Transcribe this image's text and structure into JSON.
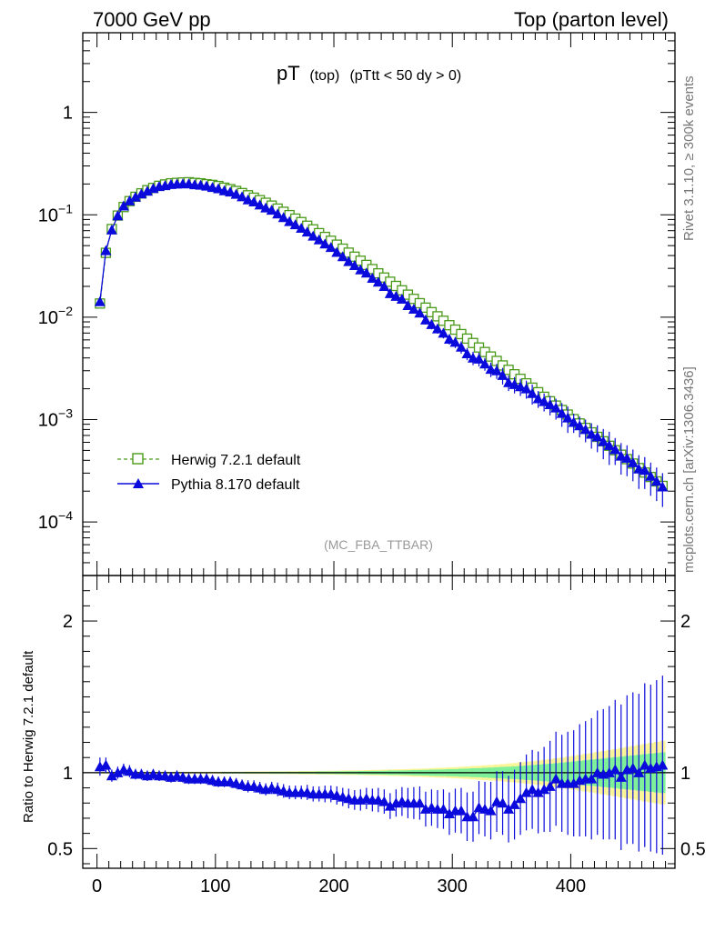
{
  "header": {
    "left": "7000 GeV pp",
    "right": "Top (parton level)"
  },
  "title": {
    "main": "pT",
    "sub": "(top)",
    "cut": "(pTtt < 50 dy > 0)"
  },
  "side_texts": {
    "rivet": "Rivet 3.1.10, ≥ 300k events",
    "mcplots": "mcplots.cern.ch [arXiv:1306.3436]"
  },
  "analysis_tag": "(MC_FBA_TTBAR)",
  "legend": [
    {
      "label": "Herwig 7.2.1 default",
      "color": "#4a9a1a",
      "marker": "open-square",
      "line": "dashed"
    },
    {
      "label": "Pythia 8.170 default",
      "color": "#0a0adc",
      "marker": "filled-triangle",
      "line": "solid"
    }
  ],
  "colors": {
    "herwig": "#4a9a1a",
    "pythia": "#0a0adc",
    "band_inner": "#7ff09a",
    "band_outer": "#fbf59a"
  },
  "chart_data": [
    {
      "type": "line",
      "panel": "main",
      "yscale": "log",
      "xlim": [
        -12,
        488
      ],
      "ylim": [
        3e-05,
        6
      ],
      "x_ticks": [
        0,
        100,
        200,
        300,
        400
      ],
      "y_ticks": [
        {
          "value": 0.0001,
          "base": "10",
          "exp": "−4"
        },
        {
          "value": 0.001,
          "base": "10",
          "exp": "−3"
        },
        {
          "value": 0.01,
          "base": "10",
          "exp": "−2"
        },
        {
          "value": 0.1,
          "base": "10",
          "exp": "−1"
        },
        {
          "value": 1,
          "base": "1",
          "exp": ""
        }
      ],
      "bin_width": 5,
      "x": [
        2.5,
        7.5,
        12.5,
        17.5,
        22.5,
        27.5,
        32.5,
        37.5,
        42.5,
        47.5,
        52.5,
        57.5,
        62.5,
        67.5,
        72.5,
        77.5,
        82.5,
        87.5,
        92.5,
        97.5,
        102.5,
        107.5,
        112.5,
        117.5,
        122.5,
        127.5,
        132.5,
        137.5,
        142.5,
        147.5,
        152.5,
        157.5,
        162.5,
        167.5,
        172.5,
        177.5,
        182.5,
        187.5,
        192.5,
        197.5,
        202.5,
        207.5,
        212.5,
        217.5,
        222.5,
        227.5,
        232.5,
        237.5,
        242.5,
        247.5,
        252.5,
        257.5,
        262.5,
        267.5,
        272.5,
        277.5,
        282.5,
        287.5,
        292.5,
        297.5,
        302.5,
        307.5,
        312.5,
        317.5,
        322.5,
        327.5,
        332.5,
        337.5,
        342.5,
        347.5,
        352.5,
        357.5,
        362.5,
        367.5,
        372.5,
        377.5,
        382.5,
        387.5,
        392.5,
        397.5,
        402.5,
        407.5,
        412.5,
        417.5,
        422.5,
        427.5,
        432.5,
        437.5,
        442.5,
        447.5,
        452.5,
        457.5,
        462.5,
        467.5,
        472.5,
        477.5
      ],
      "series": [
        {
          "name": "Herwig 7.2.1 default",
          "values": [
            0.0136,
            0.0425,
            0.0726,
            0.0983,
            0.119,
            0.136,
            0.15,
            0.162,
            0.174,
            0.183,
            0.192,
            0.198,
            0.203,
            0.205,
            0.207,
            0.208,
            0.205,
            0.203,
            0.199,
            0.196,
            0.191,
            0.184,
            0.178,
            0.171,
            0.163,
            0.155,
            0.147,
            0.139,
            0.131,
            0.123,
            0.115,
            0.107,
            0.0993,
            0.0918,
            0.0849,
            0.0782,
            0.0721,
            0.0662,
            0.0608,
            0.0558,
            0.0511,
            0.0467,
            0.0427,
            0.039,
            0.0356,
            0.0324,
            0.0295,
            0.0268,
            0.0244,
            0.0222,
            0.0202,
            0.0183,
            0.0166,
            0.0151,
            0.0137,
            0.0124,
            0.0112,
            0.0102,
            0.00923,
            0.00835,
            0.00756,
            0.00684,
            0.00618,
            0.0056,
            0.00506,
            0.00457,
            0.00413,
            0.00374,
            0.00338,
            0.00306,
            0.00277,
            0.0025,
            0.00226,
            0.00205,
            0.00185,
            0.00167,
            0.00151,
            0.00137,
            0.00124,
            0.00112,
            0.00101,
            0.000917,
            0.000829,
            0.00075,
            0.000678,
            0.000614,
            0.000555,
            0.000502,
            0.000454,
            0.000411,
            0.000372,
            0.000336,
            0.000304,
            0.000275,
            0.000249,
            0.000225
          ]
        },
        {
          "name": "Pythia 8.170 default",
          "values": [
            0.0142,
            0.0447,
            0.0711,
            0.098,
            0.122,
            0.137,
            0.149,
            0.16,
            0.17,
            0.181,
            0.189,
            0.193,
            0.198,
            0.2,
            0.201,
            0.201,
            0.197,
            0.195,
            0.191,
            0.185,
            0.18,
            0.172,
            0.167,
            0.159,
            0.15,
            0.14,
            0.134,
            0.125,
            0.117,
            0.111,
            0.102,
            0.094,
            0.086,
            0.08,
            0.074,
            0.068,
            0.062,
            0.057,
            0.052,
            0.048,
            0.043,
            0.039,
            0.035,
            0.032,
            0.029,
            0.027,
            0.024,
            0.022,
            0.02,
            0.017,
            0.016,
            0.015,
            0.013,
            0.012,
            0.011,
            0.0094,
            0.0085,
            0.0077,
            0.007,
            0.0061,
            0.0057,
            0.0051,
            0.0044,
            0.004,
            0.0039,
            0.0035,
            0.0031,
            0.003,
            0.0027,
            0.0023,
            0.0022,
            0.0021,
            0.002,
            0.0018,
            0.0016,
            0.0015,
            0.0014,
            0.0013,
            0.00115,
            0.00104,
            0.00094,
            0.00087,
            0.0008,
            0.00072,
            0.00068,
            0.00061,
            0.00056,
            0.00051,
            0.00044,
            0.00042,
            0.00038,
            0.00033,
            0.00032,
            0.00028,
            0.00025,
            0.00022
          ],
          "errors": [
            0.0008,
            0.0018,
            0.0024,
            0.0031,
            0.0036,
            0.004,
            0.0043,
            0.0045,
            0.0047,
            0.0049,
            0.0051,
            0.0052,
            0.0053,
            0.0054,
            0.0054,
            0.0054,
            0.0053,
            0.0053,
            0.0052,
            0.0051,
            0.005,
            0.0049,
            0.0048,
            0.0046,
            0.0044,
            0.0042,
            0.0041,
            0.0039,
            0.0037,
            0.0036,
            0.0034,
            0.0033,
            0.0031,
            0.0029,
            0.0028,
            0.0027,
            0.0025,
            0.0024,
            0.0023,
            0.0022,
            0.0021,
            0.002,
            0.0019,
            0.0018,
            0.0017,
            0.0016,
            0.0016,
            0.0015,
            0.0014,
            0.0013,
            0.0013,
            0.0012,
            0.0011,
            0.0011,
            0.001,
            0.0009,
            0.0009,
            0.0008,
            0.0008,
            0.0007,
            0.0007,
            0.0007,
            0.0006,
            0.0006,
            0.0006,
            0.0005,
            0.0005,
            0.0005,
            0.0005,
            0.0004,
            0.0004,
            0.0004,
            0.0004,
            0.0004,
            0.0003,
            0.0003,
            0.0003,
            0.0003,
            0.0003,
            0.0003,
            0.0002,
            0.0002,
            0.0002,
            0.0002,
            0.0002,
            0.0002,
            0.0002,
            0.00015,
            0.00015,
            0.00014,
            0.00013,
            0.00012,
            0.00011,
            0.0001,
            9e-05,
            8e-05
          ]
        }
      ],
      "title": "pT (top) (pTtt < 50 dy > 0)",
      "xlabel": "",
      "ylabel": "",
      "legend_position": "bottom-left"
    },
    {
      "type": "line",
      "panel": "ratio",
      "ylabel": "Ratio to Herwig 7.2.1 default",
      "ylim": [
        0.37,
        2.3
      ],
      "xlim": [
        -12,
        488
      ],
      "y_ticks": [
        0.5,
        1,
        2
      ],
      "x_ticks": [
        0,
        100,
        200,
        300,
        400
      ],
      "x": [
        2.5,
        7.5,
        12.5,
        17.5,
        22.5,
        27.5,
        32.5,
        37.5,
        42.5,
        47.5,
        52.5,
        57.5,
        62.5,
        67.5,
        72.5,
        77.5,
        82.5,
        87.5,
        92.5,
        97.5,
        102.5,
        107.5,
        112.5,
        117.5,
        122.5,
        127.5,
        132.5,
        137.5,
        142.5,
        147.5,
        152.5,
        157.5,
        162.5,
        167.5,
        172.5,
        177.5,
        182.5,
        187.5,
        192.5,
        197.5,
        202.5,
        207.5,
        212.5,
        217.5,
        222.5,
        227.5,
        232.5,
        237.5,
        242.5,
        247.5,
        252.5,
        257.5,
        262.5,
        267.5,
        272.5,
        277.5,
        282.5,
        287.5,
        292.5,
        297.5,
        302.5,
        307.5,
        312.5,
        317.5,
        322.5,
        327.5,
        332.5,
        337.5,
        342.5,
        347.5,
        352.5,
        357.5,
        362.5,
        367.5,
        372.5,
        377.5,
        382.5,
        387.5,
        392.5,
        397.5,
        402.5,
        407.5,
        412.5,
        417.5,
        422.5,
        427.5,
        432.5,
        437.5,
        442.5,
        447.5,
        452.5,
        457.5,
        462.5,
        467.5,
        472.5,
        477.5
      ],
      "band_inner_halfwidth": [
        0.004,
        0.004,
        0.004,
        0.004,
        0.004,
        0.004,
        0.004,
        0.004,
        0.004,
        0.004,
        0.004,
        0.004,
        0.004,
        0.004,
        0.004,
        0.004,
        0.004,
        0.004,
        0.004,
        0.004,
        0.004,
        0.005,
        0.005,
        0.005,
        0.005,
        0.005,
        0.005,
        0.005,
        0.005,
        0.006,
        0.006,
        0.006,
        0.006,
        0.006,
        0.007,
        0.007,
        0.007,
        0.008,
        0.008,
        0.008,
        0.009,
        0.009,
        0.01,
        0.01,
        0.011,
        0.011,
        0.012,
        0.012,
        0.013,
        0.014,
        0.014,
        0.015,
        0.016,
        0.017,
        0.018,
        0.019,
        0.02,
        0.021,
        0.022,
        0.023,
        0.024,
        0.026,
        0.027,
        0.029,
        0.03,
        0.032,
        0.034,
        0.036,
        0.038,
        0.04,
        0.042,
        0.044,
        0.047,
        0.05,
        0.053,
        0.056,
        0.059,
        0.062,
        0.066,
        0.07,
        0.074,
        0.078,
        0.082,
        0.086,
        0.09,
        0.094,
        0.098,
        0.102,
        0.106,
        0.11,
        0.114,
        0.118,
        0.122,
        0.126,
        0.13,
        0.134
      ],
      "band_outer_halfwidth": [
        0.006,
        0.006,
        0.006,
        0.006,
        0.006,
        0.006,
        0.006,
        0.006,
        0.006,
        0.006,
        0.006,
        0.006,
        0.006,
        0.006,
        0.006,
        0.006,
        0.006,
        0.006,
        0.006,
        0.006,
        0.006,
        0.007,
        0.007,
        0.007,
        0.007,
        0.008,
        0.008,
        0.008,
        0.008,
        0.009,
        0.009,
        0.009,
        0.01,
        0.01,
        0.011,
        0.011,
        0.011,
        0.012,
        0.012,
        0.013,
        0.013,
        0.014,
        0.015,
        0.015,
        0.016,
        0.017,
        0.018,
        0.019,
        0.02,
        0.021,
        0.022,
        0.023,
        0.024,
        0.026,
        0.027,
        0.028,
        0.03,
        0.032,
        0.033,
        0.035,
        0.037,
        0.039,
        0.041,
        0.044,
        0.046,
        0.049,
        0.051,
        0.054,
        0.057,
        0.061,
        0.064,
        0.068,
        0.072,
        0.076,
        0.08,
        0.085,
        0.09,
        0.095,
        0.1,
        0.106,
        0.112,
        0.118,
        0.124,
        0.13,
        0.137,
        0.143,
        0.15,
        0.156,
        0.163,
        0.17,
        0.176,
        0.183,
        0.19,
        0.196,
        0.203,
        0.21
      ],
      "series": [
        {
          "name": "Pythia 8.170 default / Herwig 7.2.1 default",
          "values": [
            1.04,
            1.05,
            0.98,
            1.0,
            1.02,
            1.01,
            0.99,
            0.99,
            0.98,
            0.99,
            0.98,
            0.98,
            0.97,
            0.98,
            0.97,
            0.96,
            0.96,
            0.96,
            0.96,
            0.95,
            0.94,
            0.94,
            0.94,
            0.93,
            0.92,
            0.91,
            0.91,
            0.9,
            0.89,
            0.9,
            0.89,
            0.88,
            0.87,
            0.87,
            0.87,
            0.87,
            0.86,
            0.86,
            0.86,
            0.86,
            0.85,
            0.84,
            0.83,
            0.82,
            0.82,
            0.83,
            0.82,
            0.82,
            0.81,
            0.78,
            0.8,
            0.81,
            0.8,
            0.8,
            0.8,
            0.76,
            0.77,
            0.76,
            0.76,
            0.73,
            0.75,
            0.75,
            0.71,
            0.71,
            0.77,
            0.76,
            0.75,
            0.81,
            0.8,
            0.76,
            0.79,
            0.83,
            0.87,
            0.89,
            0.87,
            0.89,
            0.91,
            0.96,
            0.93,
            0.93,
            0.93,
            0.95,
            0.96,
            0.96,
            1.0,
            0.99,
            1.0,
            1.02,
            0.97,
            1.02,
            1.03,
            1.0,
            1.05,
            1.03,
            1.04,
            1.05
          ],
          "errors": [
            0.06,
            0.05,
            0.04,
            0.04,
            0.04,
            0.04,
            0.035,
            0.035,
            0.035,
            0.035,
            0.035,
            0.035,
            0.035,
            0.035,
            0.035,
            0.035,
            0.035,
            0.035,
            0.035,
            0.035,
            0.035,
            0.035,
            0.035,
            0.035,
            0.035,
            0.04,
            0.04,
            0.04,
            0.04,
            0.04,
            0.045,
            0.045,
            0.045,
            0.045,
            0.045,
            0.05,
            0.05,
            0.05,
            0.055,
            0.055,
            0.06,
            0.06,
            0.065,
            0.065,
            0.07,
            0.07,
            0.075,
            0.08,
            0.08,
            0.085,
            0.09,
            0.095,
            0.1,
            0.105,
            0.11,
            0.115,
            0.12,
            0.125,
            0.13,
            0.14,
            0.145,
            0.15,
            0.16,
            0.165,
            0.175,
            0.18,
            0.19,
            0.2,
            0.21,
            0.22,
            0.23,
            0.24,
            0.25,
            0.26,
            0.27,
            0.28,
            0.3,
            0.31,
            0.32,
            0.34,
            0.35,
            0.37,
            0.38,
            0.4,
            0.41,
            0.43,
            0.44,
            0.46,
            0.48,
            0.49,
            0.5,
            0.52,
            0.54,
            0.55,
            0.57,
            0.59
          ]
        }
      ]
    }
  ]
}
